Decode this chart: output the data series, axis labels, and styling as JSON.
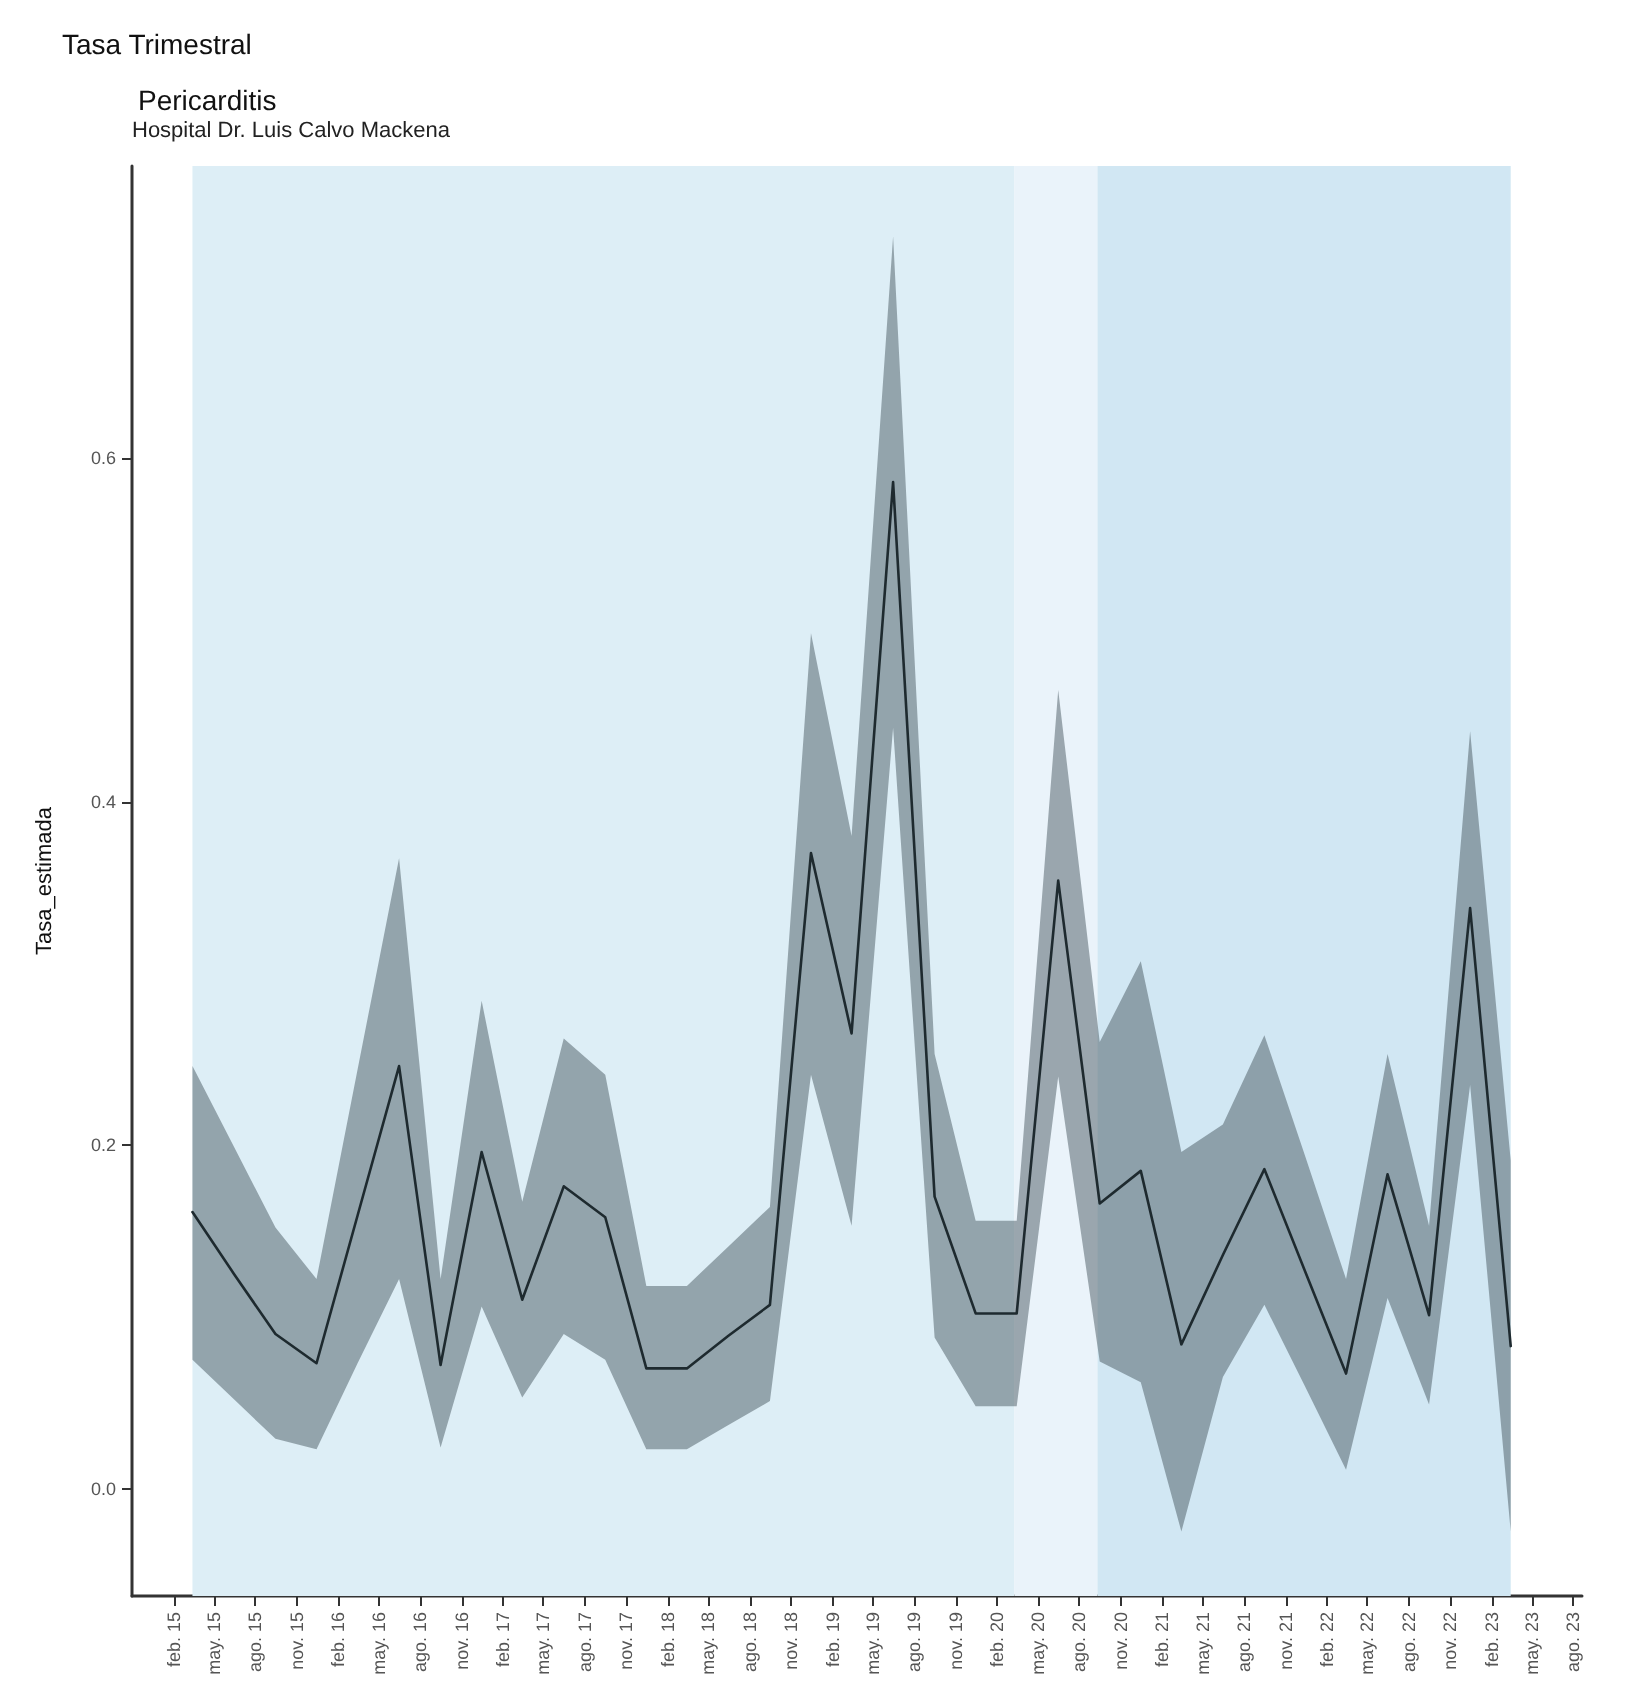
{
  "chart_data": {
    "type": "line",
    "title": "Tasa Trimestral",
    "subtitle": "Pericarditis",
    "annotations": [
      "Hospital Dr. Luis Calvo Mackena"
    ],
    "ylabel": "Tasa_estimada",
    "x": [
      "2015-03-15",
      "2015-06-15",
      "2015-09-15",
      "2015-12-15",
      "2016-03-15",
      "2016-06-15",
      "2016-09-15",
      "2016-12-15",
      "2017-03-15",
      "2017-06-15",
      "2017-09-15",
      "2017-12-15",
      "2018-03-15",
      "2018-06-15",
      "2018-09-15",
      "2018-12-15",
      "2019-03-15",
      "2019-06-15",
      "2019-09-15",
      "2019-12-15",
      "2020-03-15",
      "2020-06-15",
      "2020-09-15",
      "2020-12-15",
      "2021-03-15",
      "2021-06-15",
      "2021-09-15",
      "2021-12-15",
      "2022-03-15",
      "2022-06-15",
      "2022-09-15",
      "2022-12-15",
      "2023-03-15"
    ],
    "series": [
      {
        "color": "#1e2a2f",
        "values": [
          0.161,
          0.125,
          0.09,
          0.073,
          0.159,
          0.246,
          0.072,
          0.196,
          0.11,
          0.176,
          0.158,
          0.07,
          0.07,
          0.089,
          0.107,
          0.37,
          0.265,
          0.586,
          0.17,
          0.102,
          0.102,
          0.354,
          0.166,
          0.185,
          0.084,
          0.136,
          0.186,
          0.126,
          0.067,
          0.183,
          0.101,
          0.338,
          0.083
        ],
        "upper": [
          0.246,
          0.199,
          0.152,
          0.122,
          0.244,
          0.367,
          0.122,
          0.284,
          0.167,
          0.262,
          0.241,
          0.118,
          0.118,
          0.141,
          0.164,
          0.498,
          0.38,
          0.729,
          0.253,
          0.156,
          0.156,
          0.465,
          0.26,
          0.307,
          0.196,
          0.212,
          0.264,
          0.193,
          0.122,
          0.253,
          0.153,
          0.441,
          0.191
        ],
        "lower": [
          0.075,
          0.052,
          0.029,
          0.023,
          0.073,
          0.122,
          0.024,
          0.106,
          0.053,
          0.09,
          0.075,
          0.023,
          0.023,
          0.037,
          0.051,
          0.241,
          0.153,
          0.443,
          0.088,
          0.048,
          0.048,
          0.24,
          0.074,
          0.062,
          -0.025,
          0.065,
          0.107,
          0.059,
          0.011,
          0.111,
          0.049,
          0.235,
          -0.025
        ]
      }
    ],
    "bands": [
      {
        "axis": "x",
        "from": "2015-03-15",
        "to": "2020-03-10",
        "color": "#ddeef6"
      },
      {
        "axis": "x",
        "from": "2020-03-10",
        "to": "2020-09-10",
        "color": "#eaf3fa"
      },
      {
        "axis": "x",
        "from": "2020-09-10",
        "to": "2023-03-15",
        "color": "#d1e7f3"
      }
    ],
    "xlim": [
      "2014-11-01",
      "2023-08-20"
    ],
    "xticks": [
      {
        "value": "2015-02-01",
        "label": "feb. 15"
      },
      {
        "value": "2015-05-01",
        "label": "may. 15"
      },
      {
        "value": "2015-08-01",
        "label": "ago. 15"
      },
      {
        "value": "2015-11-01",
        "label": "nov. 15"
      },
      {
        "value": "2016-02-01",
        "label": "feb. 16"
      },
      {
        "value": "2016-05-01",
        "label": "may. 16"
      },
      {
        "value": "2016-08-01",
        "label": "ago. 16"
      },
      {
        "value": "2016-11-01",
        "label": "nov. 16"
      },
      {
        "value": "2017-02-01",
        "label": "feb. 17"
      },
      {
        "value": "2017-05-01",
        "label": "may. 17"
      },
      {
        "value": "2017-08-01",
        "label": "ago. 17"
      },
      {
        "value": "2017-11-01",
        "label": "nov. 17"
      },
      {
        "value": "2018-02-01",
        "label": "feb. 18"
      },
      {
        "value": "2018-05-01",
        "label": "may. 18"
      },
      {
        "value": "2018-08-01",
        "label": "ago. 18"
      },
      {
        "value": "2018-11-01",
        "label": "nov. 18"
      },
      {
        "value": "2019-02-01",
        "label": "feb. 19"
      },
      {
        "value": "2019-05-01",
        "label": "may. 19"
      },
      {
        "value": "2019-08-01",
        "label": "ago. 19"
      },
      {
        "value": "2019-11-01",
        "label": "nov. 19"
      },
      {
        "value": "2020-02-01",
        "label": "feb. 20"
      },
      {
        "value": "2020-05-01",
        "label": "may. 20"
      },
      {
        "value": "2020-08-01",
        "label": "ago. 20"
      },
      {
        "value": "2020-11-01",
        "label": "nov. 20"
      },
      {
        "value": "2021-02-01",
        "label": "feb. 21"
      },
      {
        "value": "2021-05-01",
        "label": "may. 21"
      },
      {
        "value": "2021-08-01",
        "label": "ago. 21"
      },
      {
        "value": "2021-11-01",
        "label": "nov. 21"
      },
      {
        "value": "2022-02-01",
        "label": "feb. 22"
      },
      {
        "value": "2022-05-01",
        "label": "may. 22"
      },
      {
        "value": "2022-08-01",
        "label": "ago. 22"
      },
      {
        "value": "2022-11-01",
        "label": "nov. 22"
      },
      {
        "value": "2023-02-01",
        "label": "feb. 23"
      },
      {
        "value": "2023-05-01",
        "label": "may. 23"
      },
      {
        "value": "2023-08-01",
        "label": "ago. 23"
      }
    ],
    "ylim": [
      -0.0625,
      0.77
    ],
    "yticks": [
      {
        "value": 0,
        "label": "0.0"
      },
      0.2,
      0.4,
      0.6
    ],
    "grid": false
  }
}
